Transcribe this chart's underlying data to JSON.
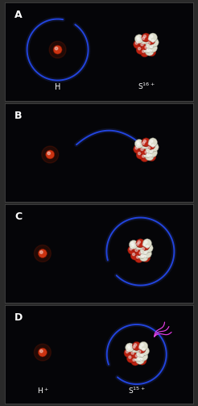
{
  "panels": [
    "A",
    "B",
    "C",
    "D"
  ],
  "bg_color": "#050508",
  "border_color": "#444444",
  "orbit_color": "#2244dd",
  "orbit_glow_color": "#4466ff",
  "orbit_lw": 1.4,
  "nucleus_red": "#bb2211",
  "nucleus_white": "#ddddcc",
  "nucleus_red_ec": "#661108",
  "nucleus_white_ec": "#888877",
  "proton_color": "#cc3311",
  "xray_color": "#ee22ee",
  "h_label": "H",
  "hplus_label": "H$^+$",
  "s16_label": "S$^{16+}$",
  "s15_label": "S$^{15+}$",
  "panel_label_color": "white",
  "panel_label_fontsize": 9,
  "text_fontsize": 7,
  "fig_w": 2.46,
  "fig_h": 5.03,
  "dpi": 100
}
